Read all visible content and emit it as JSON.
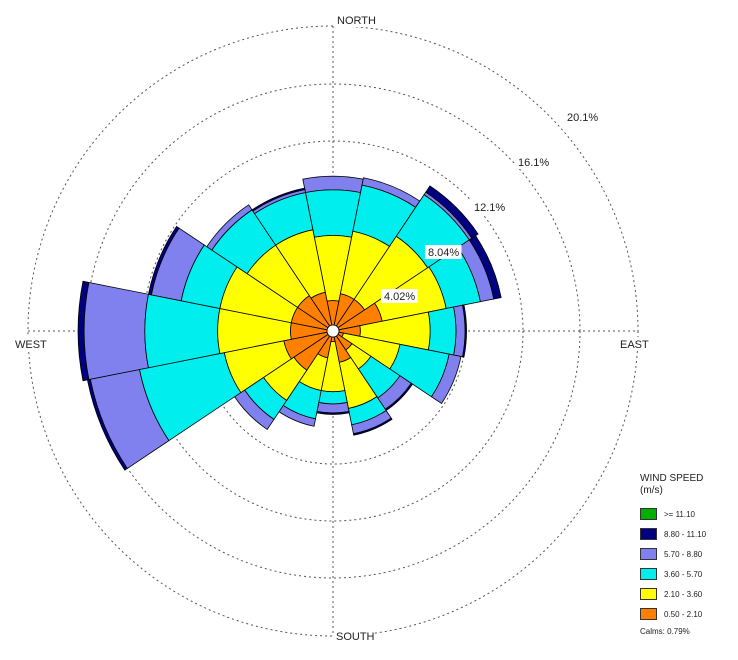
{
  "chart_data": {
    "type": "windrose",
    "directions": [
      "N",
      "NNE",
      "NE",
      "ENE",
      "E",
      "ESE",
      "SE",
      "SSE",
      "S",
      "SSW",
      "SW",
      "WSW",
      "W",
      "WNW",
      "NW",
      "NNW"
    ],
    "compass_labels": {
      "north": "NORTH",
      "east": "EAST",
      "south": "SOUTH",
      "west": "WEST"
    },
    "ring_labels": [
      "4.02%",
      "8.04%",
      "12.1%",
      "16.1%",
      "20.1%"
    ],
    "ring_values": [
      4.02,
      8.04,
      12.06,
      16.08,
      20.1
    ],
    "legend_title": "WIND SPEED\n(m/s)",
    "bins": [
      {
        "label": ">= 11.10",
        "color": "#00b000"
      },
      {
        "label": "8.80 - 11.10",
        "color": "#000080"
      },
      {
        "label": "5.70 - 8.80",
        "color": "#8080ee"
      },
      {
        "label": "3.60 - 5.70",
        "color": "#00eeee"
      },
      {
        "label": "2.10 - 3.60",
        "color": "#ffff00"
      },
      {
        "label": "0.50 - 2.10",
        "color": "#ff7f00"
      }
    ],
    "calms": "Calms: 0.79%",
    "cumulative_percent": [
      [
        2.0,
        6.3,
        9.3,
        10.2,
        10.2,
        10.2
      ],
      [
        2.5,
        6.7,
        9.8,
        10.3,
        10.3,
        10.3
      ],
      [
        2.5,
        7.5,
        10.8,
        11.0,
        11.5,
        11.5
      ],
      [
        3.3,
        7.6,
        9.9,
        10.8,
        11.3,
        11.3
      ],
      [
        1.8,
        6.4,
        8.1,
        8.7,
        8.8,
        8.8
      ],
      [
        0.7,
        4.5,
        7.8,
        8.6,
        8.6,
        8.6
      ],
      [
        1.5,
        3.0,
        5.3,
        6.2,
        6.3,
        6.3
      ],
      [
        2.1,
        5.2,
        6.3,
        6.9,
        7.0,
        7.0
      ],
      [
        0.7,
        4.0,
        4.8,
        5.4,
        5.5,
        5.5
      ],
      [
        1.8,
        4.0,
        5.9,
        6.4,
        6.4,
        6.4
      ],
      [
        3.1,
        5.5,
        7.0,
        7.8,
        7.8,
        7.8
      ],
      [
        3.3,
        7.3,
        13.0,
        16.3,
        16.5,
        16.5
      ],
      [
        2.8,
        7.6,
        12.4,
        16.4,
        16.8,
        16.8
      ],
      [
        2.8,
        7.6,
        10.2,
        12.2,
        12.4,
        12.4
      ],
      [
        2.8,
        6.8,
        9.6,
        10.0,
        10.0,
        10.0
      ],
      [
        2.6,
        6.8,
        9.3,
        9.5,
        9.6,
        9.6
      ]
    ]
  }
}
